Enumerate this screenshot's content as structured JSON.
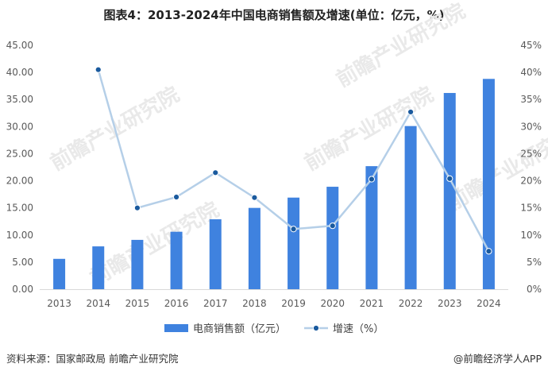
{
  "title": "图表4：2013-2024年中国电商销售额及增速(单位：亿元，%)",
  "watermark": "前瞻产业研究院",
  "footer": {
    "source": "资料来源：国家邮政局 前瞻产业研究院",
    "brand": "@前瞻经济学人APP"
  },
  "colors": {
    "bar": "#3f82df",
    "line": "#b5cfe8",
    "marker": "#1a5a9e",
    "axis": "#d9d9d9"
  },
  "chart_data": {
    "type": "bar",
    "categories": [
      "2013",
      "2014",
      "2015",
      "2016",
      "2017",
      "2018",
      "2019",
      "2020",
      "2021",
      "2022",
      "2023",
      "2024"
    ],
    "series": [
      {
        "name": "电商销售额（亿元）",
        "type": "bar",
        "axis": "left",
        "values": [
          5.6,
          7.9,
          9.1,
          10.6,
          12.9,
          15.0,
          16.9,
          18.9,
          22.7,
          30.1,
          36.2,
          38.8
        ]
      },
      {
        "name": "增速（%）",
        "type": "line",
        "axis": "right",
        "values": [
          null,
          40.5,
          15.0,
          17.0,
          21.5,
          16.9,
          11.1,
          11.7,
          20.3,
          32.7,
          20.4,
          7.0
        ]
      }
    ],
    "y_left": {
      "ylim": [
        0,
        45
      ],
      "ticks": [
        "0.00",
        "5.00",
        "10.00",
        "15.00",
        "20.00",
        "25.00",
        "30.00",
        "35.00",
        "40.00",
        "45.00"
      ]
    },
    "y_right": {
      "ylim": [
        0,
        45
      ],
      "ticks": [
        "0%",
        "5%",
        "10%",
        "15%",
        "20%",
        "25%",
        "30%",
        "35%",
        "40%",
        "45%"
      ]
    },
    "legend": "bottom",
    "grid": false
  }
}
